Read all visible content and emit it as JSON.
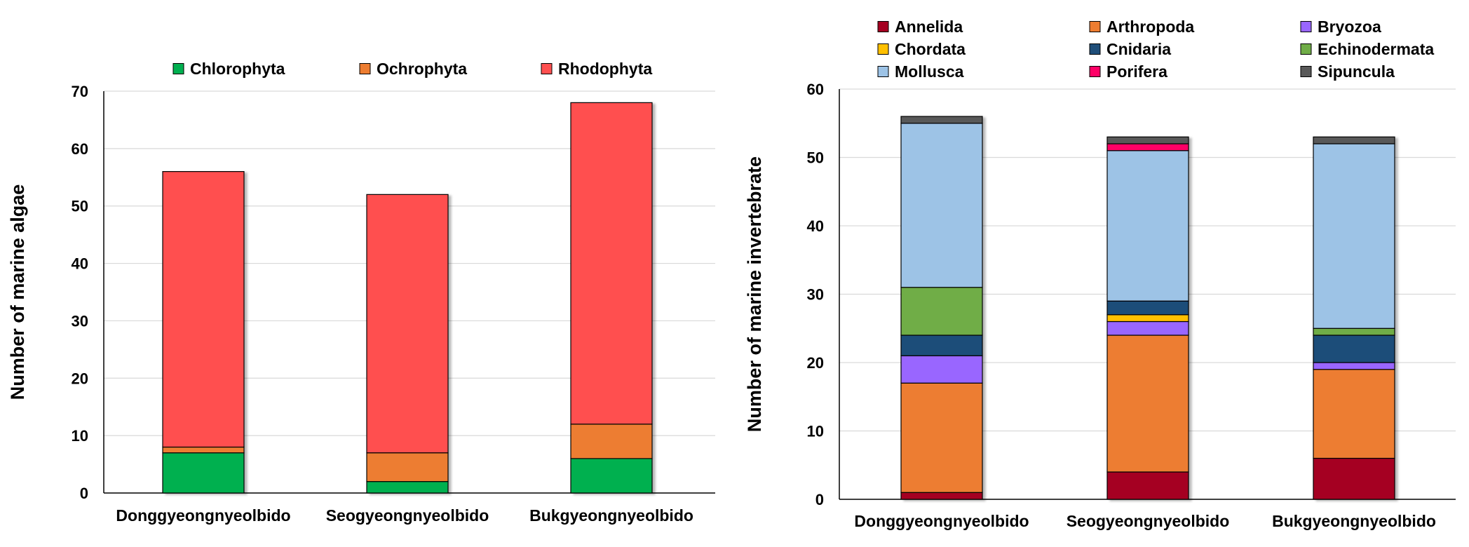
{
  "chart_data": [
    {
      "type": "bar",
      "stacked": true,
      "ylabel": "Number of marine algae",
      "xlabel": "",
      "ylim": [
        0,
        70
      ],
      "yticks": [
        0,
        10,
        20,
        30,
        40,
        50,
        60,
        70
      ],
      "grid": true,
      "legend_position": "top",
      "categories": [
        "Donggyeongnyeolbido",
        "Seogyeongnyeolbido",
        "Bukgyeongnyeolbido"
      ],
      "series": [
        {
          "name": "Chlorophyta",
          "color": "#00b050",
          "values": [
            7,
            2,
            6
          ]
        },
        {
          "name": "Ochrophyta",
          "color": "#ed7d31",
          "values": [
            1,
            5,
            6
          ]
        },
        {
          "name": "Rhodophyta",
          "color": "#ff5050",
          "values": [
            48,
            45,
            56
          ]
        }
      ]
    },
    {
      "type": "bar",
      "stacked": true,
      "ylabel": "Number of marine invertebrate",
      "xlabel": "",
      "ylim": [
        0,
        60
      ],
      "yticks": [
        0,
        10,
        20,
        30,
        40,
        50,
        60
      ],
      "grid": true,
      "legend_position": "top",
      "categories": [
        "Donggyeongnyeolbido",
        "Seogyeongnyeolbido",
        "Bukgyeongnyeolbido"
      ],
      "series": [
        {
          "name": "Annelida",
          "color": "#a50021",
          "values": [
            1,
            4,
            6
          ]
        },
        {
          "name": "Arthropoda",
          "color": "#ed7d31",
          "values": [
            16,
            20,
            13
          ]
        },
        {
          "name": "Bryozoa",
          "color": "#9966ff",
          "values": [
            4,
            2,
            1
          ]
        },
        {
          "name": "Chordata",
          "color": "#ffc000",
          "values": [
            0,
            1,
            0
          ]
        },
        {
          "name": "Cnidaria",
          "color": "#1f4e79",
          "values": [
            3,
            2,
            4
          ]
        },
        {
          "name": "Echinodermata",
          "color": "#70ad47",
          "values": [
            7,
            0,
            1
          ]
        },
        {
          "name": "Mollusca",
          "color": "#9dc3e6",
          "values": [
            24,
            22,
            27
          ]
        },
        {
          "name": "Porifera",
          "color": "#ff0066",
          "values": [
            0,
            1,
            0
          ]
        },
        {
          "name": "Sipuncula",
          "color": "#595959",
          "values": [
            1,
            1,
            1
          ]
        }
      ]
    }
  ]
}
